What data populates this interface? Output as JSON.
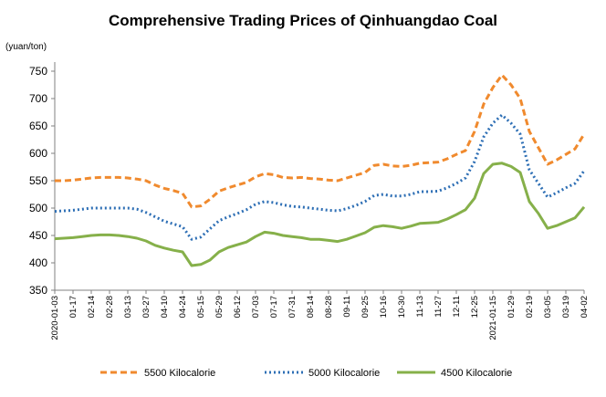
{
  "chart_data": {
    "type": "line",
    "title": "Comprehensive Trading Prices of Qinhuangdao Coal",
    "ylabel": "(yuan/ton)",
    "xlabel": "",
    "ylim": [
      350,
      750
    ],
    "yticks": [
      350,
      400,
      450,
      500,
      550,
      600,
      650,
      700,
      750
    ],
    "grid": false,
    "legend": "bottom",
    "x_tick_labels": [
      {
        "i": 0,
        "label": "2020-01-03"
      },
      {
        "i": 2,
        "label": "01-17"
      },
      {
        "i": 4,
        "label": "02-14"
      },
      {
        "i": 6,
        "label": "02-28"
      },
      {
        "i": 8,
        "label": "03-13"
      },
      {
        "i": 10,
        "label": "03-27"
      },
      {
        "i": 12,
        "label": "04-10"
      },
      {
        "i": 14,
        "label": "04-24"
      },
      {
        "i": 16,
        "label": "05-15"
      },
      {
        "i": 18,
        "label": "05-29"
      },
      {
        "i": 20,
        "label": "06-12"
      },
      {
        "i": 22,
        "label": "07-03"
      },
      {
        "i": 24,
        "label": "07-17"
      },
      {
        "i": 26,
        "label": "07-31"
      },
      {
        "i": 28,
        "label": "08-14"
      },
      {
        "i": 30,
        "label": "08-28"
      },
      {
        "i": 32,
        "label": "09-11"
      },
      {
        "i": 34,
        "label": "09-25"
      },
      {
        "i": 36,
        "label": "10-16"
      },
      {
        "i": 38,
        "label": "10-30"
      },
      {
        "i": 40,
        "label": "11-13"
      },
      {
        "i": 42,
        "label": "11-27"
      },
      {
        "i": 44,
        "label": "12-11"
      },
      {
        "i": 46,
        "label": "12-25"
      },
      {
        "i": 48,
        "label": "2021-01-15"
      },
      {
        "i": 50,
        "label": "01-29"
      },
      {
        "i": 52,
        "label": "02-19"
      },
      {
        "i": 54,
        "label": "03-05"
      },
      {
        "i": 56,
        "label": "03-19"
      },
      {
        "i": 58,
        "label": "04-02"
      }
    ],
    "series": [
      {
        "name": "5500 Kilocalorie",
        "color": "#F08A2E",
        "dash": "dashed",
        "values": [
          550,
          550,
          551,
          553,
          555,
          556,
          556,
          556,
          555,
          553,
          550,
          542,
          536,
          532,
          527,
          502,
          504,
          516,
          531,
          537,
          542,
          547,
          557,
          563,
          561,
          556,
          555,
          556,
          554,
          553,
          551,
          550,
          555,
          560,
          565,
          578,
          580,
          577,
          576,
          578,
          582,
          583,
          584,
          590,
          598,
          605,
          640,
          690,
          720,
          743,
          725,
          700,
          640,
          610,
          580,
          588,
          598,
          608,
          635
        ]
      },
      {
        "name": "5000 Kilocalorie",
        "color": "#2E6FB5",
        "dash": "dotted",
        "values": [
          494,
          495,
          496,
          498,
          500,
          500,
          500,
          500,
          500,
          498,
          492,
          484,
          476,
          471,
          466,
          443,
          447,
          462,
          477,
          484,
          490,
          497,
          507,
          512,
          510,
          506,
          503,
          502,
          500,
          498,
          496,
          495,
          499,
          505,
          512,
          523,
          525,
          522,
          522,
          525,
          530,
          530,
          531,
          537,
          545,
          555,
          585,
          630,
          655,
          670,
          655,
          635,
          570,
          545,
          520,
          528,
          537,
          545,
          568
        ]
      },
      {
        "name": "4500 Kilocalorie",
        "color": "#86B04A",
        "dash": "solid",
        "values": [
          444,
          445,
          446,
          448,
          450,
          451,
          451,
          450,
          448,
          445,
          440,
          432,
          427,
          423,
          420,
          395,
          397,
          405,
          420,
          428,
          433,
          438,
          448,
          456,
          454,
          450,
          448,
          446,
          443,
          443,
          441,
          439,
          443,
          449,
          455,
          465,
          468,
          466,
          463,
          467,
          472,
          473,
          474,
          480,
          488,
          497,
          518,
          563,
          580,
          582,
          576,
          565,
          512,
          490,
          463,
          468,
          475,
          482,
          502
        ]
      }
    ]
  }
}
